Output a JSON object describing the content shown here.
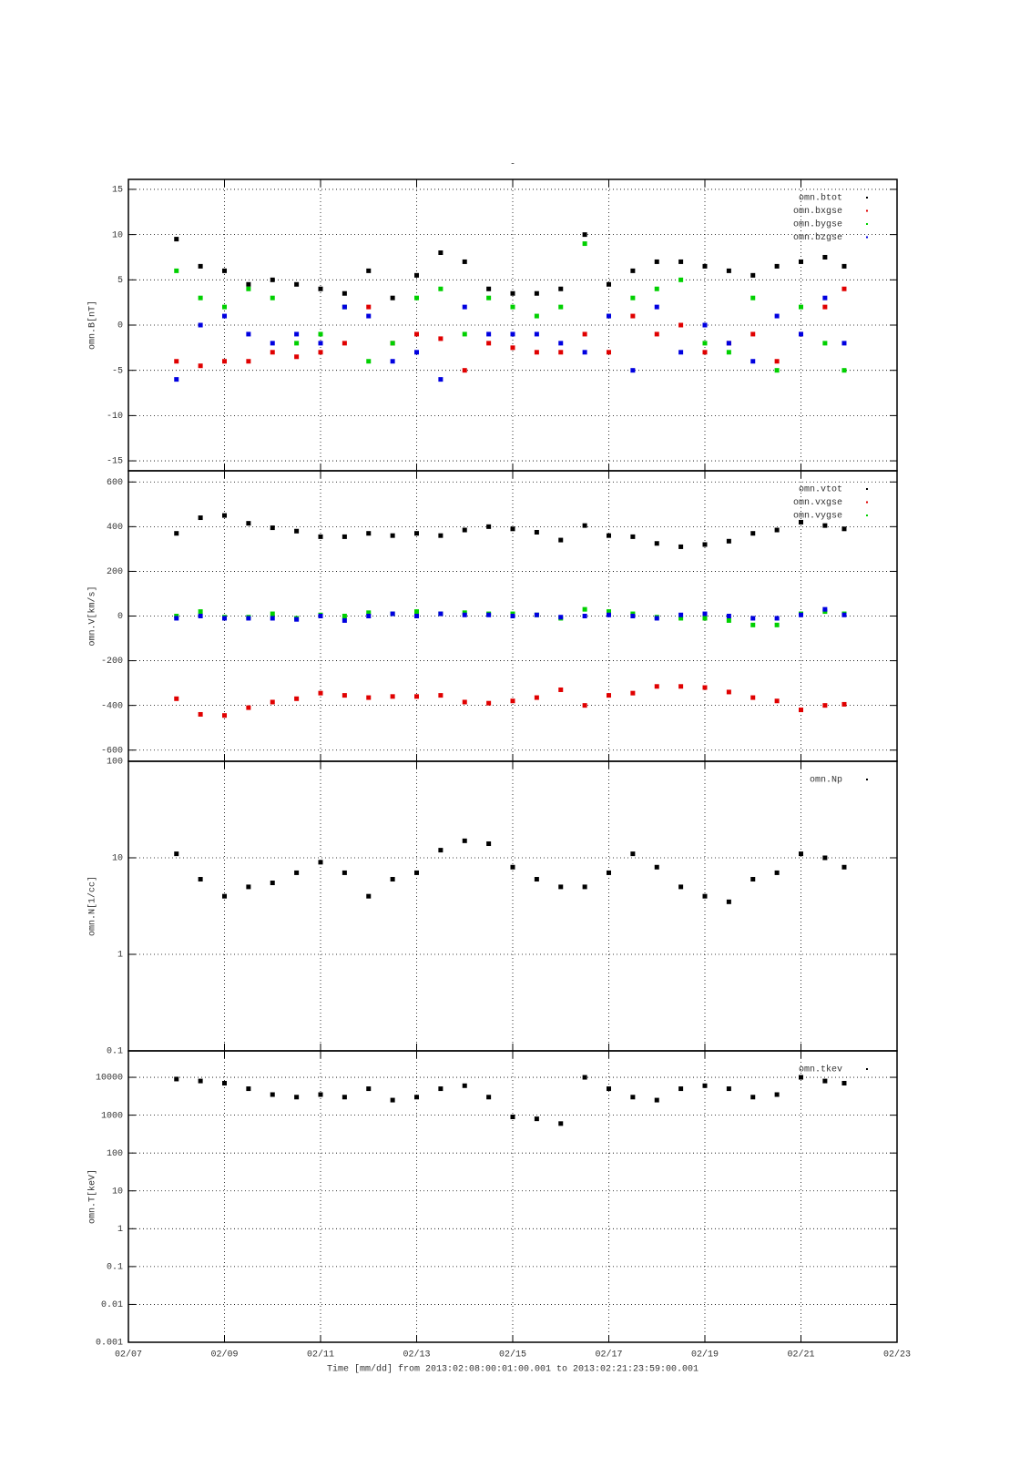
{
  "chart_data": [
    {
      "type": "scatter",
      "title": "-",
      "ylabel": "omn.B[nT]",
      "x": [
        8,
        8.5,
        9,
        9.5,
        10,
        10.5,
        11,
        11.5,
        12,
        12.5,
        13,
        13.5,
        14,
        14.5,
        15,
        15.5,
        16,
        16.5,
        17,
        17.5,
        18,
        18.5,
        19,
        19.5,
        20,
        20.5,
        21,
        21.5,
        21.9
      ],
      "xlim": [
        7,
        23
      ],
      "xticks": [
        7,
        9,
        11,
        13,
        15,
        17,
        19,
        21,
        23
      ],
      "ylim": [
        -16.1,
        16.1
      ],
      "yticks": [
        -15,
        -10,
        -5,
        0,
        5,
        10,
        15
      ],
      "grid": true,
      "legend": "upper right",
      "series": [
        {
          "name": "omn.btot",
          "color": "#000000",
          "values": [
            9.5,
            6.5,
            6,
            4.5,
            5,
            4.5,
            4,
            3.5,
            6,
            3,
            5.5,
            8,
            7,
            4,
            3.5,
            3.5,
            4,
            10,
            4.5,
            6,
            7,
            7,
            6.5,
            6,
            5.5,
            6.5,
            7,
            7.5,
            6.5
          ]
        },
        {
          "name": "omn.bxgse",
          "color": "#e00000",
          "values": [
            -4,
            -4.5,
            -4,
            -4,
            -3,
            -3.5,
            -3,
            -2,
            2,
            -2,
            -1,
            -1.5,
            -5,
            -2,
            -2.5,
            -3,
            -3,
            -1,
            -3,
            1,
            -1,
            0,
            -3,
            -2,
            -1,
            -4,
            -1,
            2,
            4
          ]
        },
        {
          "name": "omn.bygse",
          "color": "#00d000",
          "values": [
            6,
            3,
            2,
            4,
            3,
            -2,
            -1,
            2,
            -4,
            -2,
            3,
            4,
            -1,
            3,
            2,
            1,
            2,
            9,
            1,
            3,
            4,
            5,
            -2,
            -3,
            3,
            -5,
            2,
            -2,
            -5
          ]
        },
        {
          "name": "omn.bzgse",
          "color": "#0000e0",
          "values": [
            -6,
            0,
            1,
            -1,
            -2,
            -1,
            -2,
            2,
            1,
            -4,
            -3,
            -6,
            2,
            -1,
            -1,
            -1,
            -2,
            -3,
            1,
            -5,
            2,
            -3,
            0,
            -2,
            -4,
            1,
            -1,
            3,
            -2
          ]
        }
      ]
    },
    {
      "type": "scatter",
      "ylabel": "omn.V[km/s]",
      "x": [
        8,
        8.5,
        9,
        9.5,
        10,
        10.5,
        11,
        11.5,
        12,
        12.5,
        13,
        13.5,
        14,
        14.5,
        15,
        15.5,
        16,
        16.5,
        17,
        17.5,
        18,
        18.5,
        19,
        19.5,
        20,
        20.5,
        21,
        21.5,
        21.9
      ],
      "xlim": [
        7,
        23
      ],
      "xticks": [
        7,
        9,
        11,
        13,
        15,
        17,
        19,
        21,
        23
      ],
      "ylim": [
        -650,
        650
      ],
      "yticks": [
        -600,
        -400,
        -200,
        0,
        200,
        400,
        600
      ],
      "grid": true,
      "legend": "upper right",
      "series": [
        {
          "name": "omn.vtot",
          "color": "#000000",
          "values": [
            370,
            440,
            450,
            415,
            395,
            380,
            355,
            355,
            370,
            360,
            370,
            360,
            385,
            400,
            390,
            375,
            340,
            405,
            360,
            355,
            325,
            310,
            320,
            335,
            370,
            385,
            420,
            405,
            390
          ]
        },
        {
          "name": "omn.vxgse",
          "color": "#e00000",
          "values": [
            -370,
            -440,
            -445,
            -410,
            -385,
            -370,
            -345,
            -355,
            -365,
            -360,
            -360,
            -355,
            -385,
            -390,
            -380,
            -365,
            -330,
            -400,
            -355,
            -345,
            -315,
            -315,
            -320,
            -340,
            -365,
            -380,
            -420,
            -400,
            -395
          ]
        },
        {
          "name": "omn.vygse",
          "color": "#00d000",
          "values": [
            0,
            20,
            -5,
            -5,
            10,
            -10,
            5,
            0,
            15,
            10,
            20,
            10,
            15,
            10,
            10,
            5,
            -10,
            30,
            20,
            10,
            -5,
            -10,
            -10,
            -20,
            -40,
            -40,
            10,
            20,
            10
          ]
        },
        {
          "name": null,
          "color": "#0000e0",
          "values": [
            -10,
            0,
            -10,
            -10,
            -10,
            -15,
            0,
            -20,
            0,
            10,
            0,
            10,
            5,
            5,
            0,
            5,
            -5,
            0,
            5,
            0,
            -10,
            5,
            10,
            0,
            -10,
            -10,
            5,
            30,
            5
          ]
        }
      ]
    },
    {
      "type": "scatter",
      "ylabel": "omn.N[1/cc]",
      "yscale": "log",
      "x": [
        8,
        8.5,
        9,
        9.5,
        10,
        10.5,
        11,
        11.5,
        12,
        12.5,
        13,
        13.5,
        14,
        14.5,
        15,
        15.5,
        16,
        16.5,
        17,
        17.5,
        18,
        18.5,
        19,
        19.5,
        20,
        20.5,
        21,
        21.5,
        21.9
      ],
      "xlim": [
        7,
        23
      ],
      "xticks": [
        7,
        9,
        11,
        13,
        15,
        17,
        19,
        21,
        23
      ],
      "ylim": [
        0.1,
        100
      ],
      "yticks": [
        0.1,
        1,
        10,
        100
      ],
      "grid": true,
      "legend": "upper right",
      "series": [
        {
          "name": "omn.Np",
          "color": "#000000",
          "values": [
            11,
            6,
            4,
            5,
            5.5,
            7,
            9,
            7,
            4,
            6,
            7,
            12,
            15,
            14,
            8,
            6,
            5,
            5,
            7,
            11,
            8,
            5,
            4,
            3.5,
            6,
            7,
            11,
            10,
            8
          ]
        }
      ]
    },
    {
      "type": "scatter",
      "ylabel": "omn.T[keV]",
      "yscale": "log",
      "xlabel": "Time [mm/dd]  from 2013:02:08:00:01:00.001  to  2013:02:21:23:59:00.001",
      "x": [
        8,
        8.5,
        9,
        9.5,
        10,
        10.5,
        11,
        11.5,
        12,
        12.5,
        13,
        13.5,
        14,
        14.5,
        15,
        15.5,
        16,
        16.5,
        17,
        17.5,
        18,
        18.5,
        19,
        19.5,
        20,
        20.5,
        21,
        21.5,
        21.9
      ],
      "xlim": [
        7,
        23
      ],
      "xticks": [
        {
          "value": 7,
          "label": "02/07"
        },
        {
          "value": 9,
          "label": "02/09"
        },
        {
          "value": 11,
          "label": "02/11"
        },
        {
          "value": 13,
          "label": "02/13"
        },
        {
          "value": 15,
          "label": "02/15"
        },
        {
          "value": 17,
          "label": "02/17"
        },
        {
          "value": 19,
          "label": "02/19"
        },
        {
          "value": 21,
          "label": "02/21"
        },
        {
          "value": 23,
          "label": "02/23"
        }
      ],
      "ylim": [
        0.001,
        50000
      ],
      "yticks": [
        0.001,
        0.01,
        0.1,
        1,
        10,
        100,
        1000,
        10000
      ],
      "grid": true,
      "legend": "upper right",
      "series": [
        {
          "name": "omn.tkev",
          "color": "#000000",
          "values": [
            9000,
            8000,
            7000,
            5000,
            3500,
            3000,
            3500,
            3000,
            5000,
            2500,
            3000,
            5000,
            6000,
            3000,
            900,
            800,
            600,
            10000,
            5000,
            3000,
            2500,
            5000,
            6000,
            5000,
            3000,
            3500,
            10000,
            8000,
            7000
          ]
        }
      ]
    }
  ]
}
